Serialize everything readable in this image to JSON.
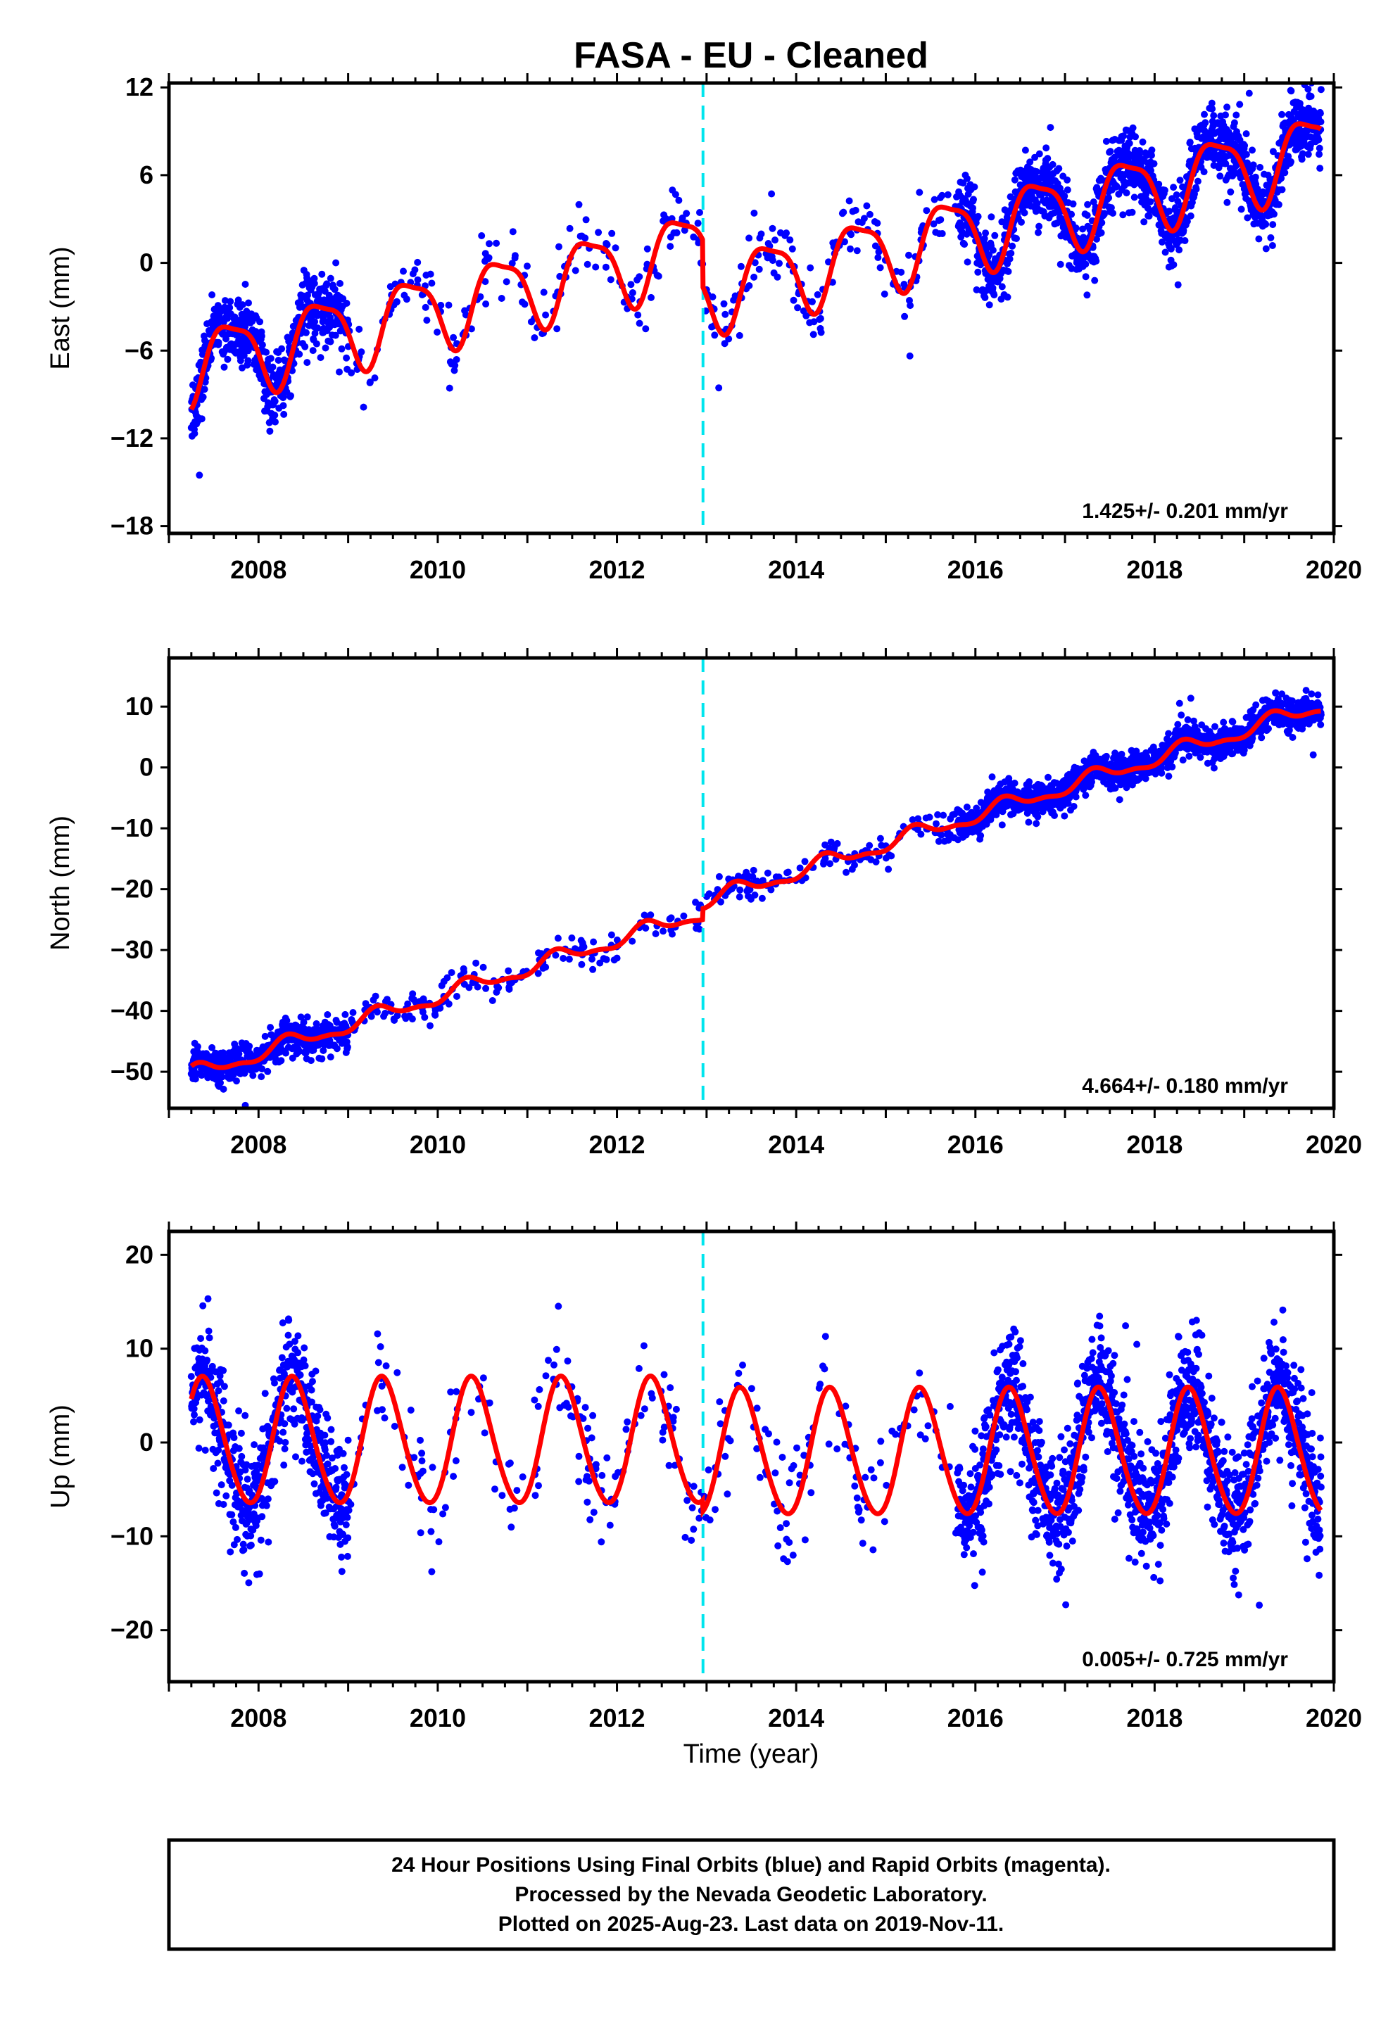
{
  "title": "FASA  - EU - Cleaned",
  "xlabel": "Time (year)",
  "footer": [
    "24 Hour Positions Using Final Orbits (blue) and Rapid Orbits (magenta).",
    "Processed by the Nevada Geodetic Laboratory.",
    "Plotted on 2025-Aug-23. Last data on 2019-Nov-11."
  ],
  "colors": {
    "data": "#0000ff",
    "model": "#ff0000",
    "offset": "#00e5ee",
    "axis": "#000000"
  },
  "chart_data": [
    {
      "type": "scatter",
      "ylabel": "East (mm)",
      "xlim": [
        2007.0,
        2020.0
      ],
      "ylim": [
        -18.5,
        12.3
      ],
      "xticks": [
        2008,
        2010,
        2012,
        2014,
        2016,
        2018,
        2020
      ],
      "yticks": [
        -18,
        -12,
        -6,
        0,
        6,
        12
      ],
      "rate_label": "1.425+/- 0.201 mm/yr",
      "offset_x": 2012.96,
      "model": {
        "name": "fit",
        "offset_a": 2.55,
        "rate": 1.425,
        "amp1": 2.55,
        "amp2": 0.7,
        "phase": -1.2
      },
      "series": [
        {
          "name": "daily positions",
          "values_summary": "scatter about model, noise ~1.2 mm"
        }
      ]
    },
    {
      "type": "scatter",
      "ylabel": "North (mm)",
      "xlim": [
        2007.0,
        2020.0
      ],
      "ylim": [
        -56,
        18
      ],
      "xticks": [
        2008,
        2010,
        2012,
        2014,
        2016,
        2018,
        2020
      ],
      "yticks": [
        -50,
        -40,
        -30,
        -20,
        -10,
        0,
        10
      ],
      "rate_label": "4.664+/- 0.180 mm/yr",
      "offset_x": 2012.96,
      "model": {
        "name": "fit",
        "rate": 4.664,
        "amp1": 1.2,
        "amp2": 0.5,
        "phase": 1.0
      },
      "series": [
        {
          "name": "daily positions",
          "values_summary": "scatter about model, noise ~1.3 mm"
        }
      ]
    },
    {
      "type": "scatter",
      "ylabel": "Up (mm)",
      "xlim": [
        2007.0,
        2020.0
      ],
      "ylim": [
        -25.5,
        22.5
      ],
      "xticks": [
        2008,
        2010,
        2012,
        2014,
        2016,
        2018,
        2020
      ],
      "yticks": [
        -20,
        -10,
        0,
        10,
        20
      ],
      "rate_label": "0.005+/- 0.725 mm/yr",
      "offset_x": 2012.96,
      "model": {
        "name": "fit",
        "rate": 0.005,
        "amp1": 6.7,
        "amp2": 0.5,
        "phase": 0.7
      },
      "series": [
        {
          "name": "daily positions",
          "values_summary": "scatter about model, noise ~3.2 mm"
        }
      ]
    }
  ]
}
